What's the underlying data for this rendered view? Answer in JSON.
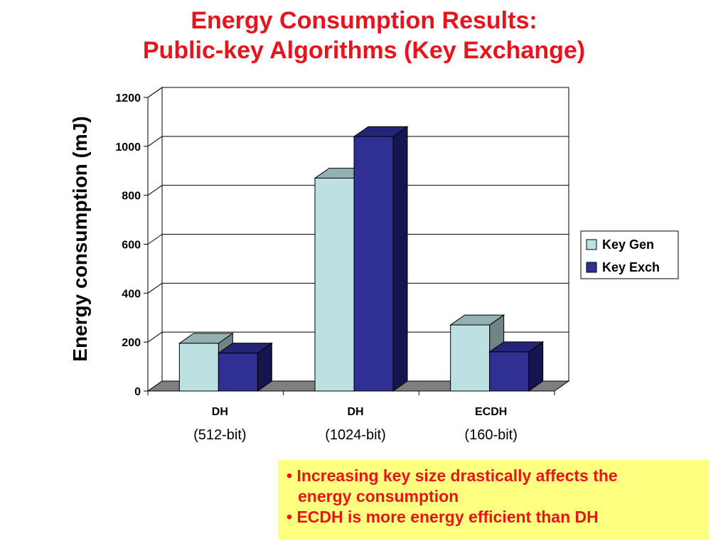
{
  "title_line1": "Energy Consumption Results:",
  "title_line2": "Public-key Algorithms (Key Exchange)",
  "notes": {
    "bullet1_line1": "• Increasing key size drastically affects the",
    "bullet1_line2": "energy consumption",
    "bullet2": "• ECDH is more energy efficient than DH"
  },
  "chart_data": {
    "type": "bar",
    "title": "",
    "xlabel": "",
    "ylabel": "Energy consumption (mJ)",
    "ylim": [
      0,
      1200
    ],
    "yticks": [
      0,
      200,
      400,
      600,
      800,
      1000,
      1200
    ],
    "grid": true,
    "legend_position": "right",
    "categories": [
      {
        "line1": "DH",
        "line2": "(512-bit)"
      },
      {
        "line1": "DH",
        "line2": "(1024-bit)"
      },
      {
        "line1": "ECDH",
        "line2": "(160-bit)"
      }
    ],
    "series": [
      {
        "name": "Key Gen",
        "values": [
          195,
          870,
          270
        ],
        "color": "#bde1e3",
        "side_color": "#6f8585",
        "top_color": "#95b0b0"
      },
      {
        "name": "Key Exch",
        "values": [
          155,
          1040,
          160
        ],
        "color": "#2f2f94",
        "side_color": "#16164e",
        "top_color": "#252577"
      }
    ]
  }
}
